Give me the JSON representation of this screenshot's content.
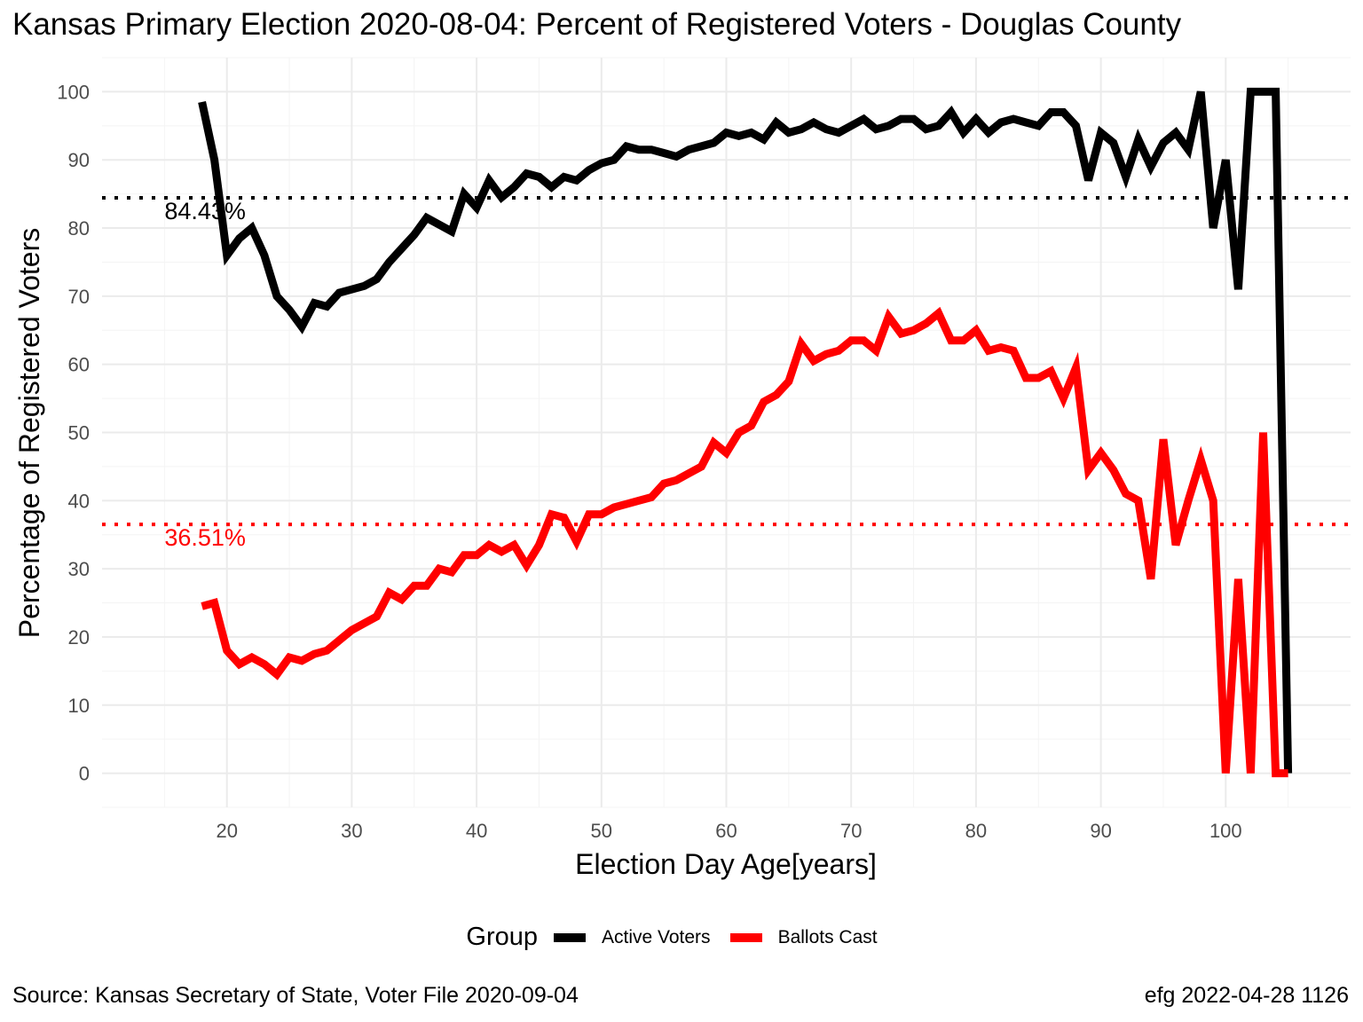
{
  "title": "Kansas Primary Election 2020-08-04:  Percent of Registered Voters - Douglas County",
  "legend": {
    "title": "Group",
    "entries": [
      {
        "label": "Active Voters",
        "color": "#000000"
      },
      {
        "label": "Ballots Cast",
        "color": "#ff0000"
      }
    ]
  },
  "captions": {
    "source": "Source:  Kansas Secretary of State, Voter File  2020-09-04",
    "credit": "efg 2022-04-28 1126"
  },
  "chart_data": {
    "type": "line",
    "xlabel": "Election Day Age[years]",
    "ylabel": "Percentage of Registered Voters",
    "xlim": [
      10,
      110
    ],
    "ylim": [
      -5,
      105
    ],
    "x_ticks": [
      20,
      30,
      40,
      50,
      60,
      70,
      80,
      90,
      100
    ],
    "y_ticks": [
      0,
      10,
      20,
      30,
      40,
      50,
      60,
      70,
      80,
      90,
      100
    ],
    "grid": true,
    "legend_position": "bottom",
    "hlines": [
      {
        "y": 84.43,
        "label": "84.43%",
        "color": "#000000",
        "style": "dotted"
      },
      {
        "y": 36.51,
        "label": "36.51%",
        "color": "#ff0000",
        "style": "dotted"
      }
    ],
    "series": [
      {
        "name": "Active Voters",
        "color": "#000000",
        "x": [
          18,
          19,
          20,
          21,
          22,
          23,
          24,
          25,
          26,
          27,
          28,
          29,
          30,
          31,
          32,
          33,
          34,
          35,
          36,
          37,
          38,
          39,
          40,
          41,
          42,
          43,
          44,
          45,
          46,
          47,
          48,
          49,
          50,
          51,
          52,
          53,
          54,
          55,
          56,
          57,
          58,
          59,
          60,
          61,
          62,
          63,
          64,
          65,
          66,
          67,
          68,
          69,
          70,
          71,
          72,
          73,
          74,
          75,
          76,
          77,
          78,
          79,
          80,
          81,
          82,
          83,
          84,
          85,
          86,
          87,
          88,
          89,
          90,
          91,
          92,
          93,
          94,
          95,
          96,
          97,
          98,
          99,
          100,
          101,
          102,
          103,
          104,
          105
        ],
        "values": [
          98.5,
          90,
          76,
          78.5,
          80,
          76,
          70,
          68,
          65.5,
          69,
          68.5,
          70.5,
          71,
          71.5,
          72.5,
          75,
          77,
          79,
          81.5,
          80.5,
          79.5,
          85,
          83,
          87,
          84.5,
          86,
          88,
          87.5,
          86,
          87.5,
          87,
          88.5,
          89.5,
          90,
          92,
          91.5,
          91.5,
          91,
          90.5,
          91.5,
          92,
          92.5,
          94,
          93.5,
          94,
          93,
          95.5,
          94,
          94.5,
          95.5,
          94.5,
          94,
          95,
          96,
          94.5,
          95,
          96,
          96,
          94.5,
          95,
          97,
          94,
          96,
          94,
          95.5,
          96,
          95.5,
          95,
          97,
          97,
          95,
          87,
          94,
          92.5,
          87.5,
          93,
          89,
          92.5,
          94,
          91.5,
          100,
          80,
          90,
          71,
          100,
          100,
          100,
          0
        ]
      },
      {
        "name": "Ballots Cast",
        "color": "#ff0000",
        "x": [
          18,
          19,
          20,
          21,
          22,
          23,
          24,
          25,
          26,
          27,
          28,
          29,
          30,
          31,
          32,
          33,
          34,
          35,
          36,
          37,
          38,
          39,
          40,
          41,
          42,
          43,
          44,
          45,
          46,
          47,
          48,
          49,
          50,
          51,
          52,
          53,
          54,
          55,
          56,
          57,
          58,
          59,
          60,
          61,
          62,
          63,
          64,
          65,
          66,
          67,
          68,
          69,
          70,
          71,
          72,
          73,
          74,
          75,
          76,
          77,
          78,
          79,
          80,
          81,
          82,
          83,
          84,
          85,
          86,
          87,
          88,
          89,
          90,
          91,
          92,
          93,
          94,
          95,
          96,
          97,
          98,
          99,
          100,
          101,
          102,
          103,
          104,
          105
        ],
        "values": [
          24.5,
          25,
          18,
          16,
          17,
          16,
          14.5,
          17,
          16.5,
          17.5,
          18,
          19.5,
          21,
          22,
          23,
          26.5,
          25.5,
          27.5,
          27.5,
          30,
          29.5,
          32,
          32,
          33.5,
          32.5,
          33.5,
          30.5,
          33.5,
          38,
          37.5,
          34,
          38,
          38,
          39,
          39.5,
          40,
          40.5,
          42.5,
          43,
          44,
          45,
          48.5,
          47,
          50,
          51,
          54.5,
          55.5,
          57.5,
          63,
          60.5,
          61.5,
          62,
          63.5,
          63.5,
          62,
          67,
          64.5,
          65,
          66,
          67.5,
          63.5,
          63.5,
          65,
          62,
          62.5,
          62,
          58,
          58,
          59,
          55,
          59.5,
          44.5,
          47,
          44.5,
          41,
          40,
          28.5,
          49,
          33.5,
          40,
          46,
          40,
          0,
          28.5,
          0,
          50,
          0,
          0
        ]
      }
    ]
  }
}
